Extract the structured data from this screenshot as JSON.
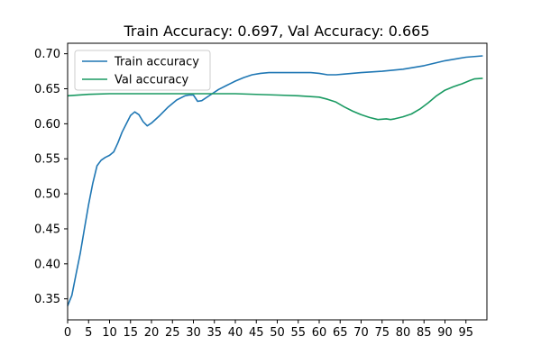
{
  "chart_data": {
    "type": "line",
    "title": "Train Accuracy: 0.697, Val Accuracy: 0.665",
    "xlabel": "",
    "ylabel": "",
    "xlim": [
      0,
      100
    ],
    "ylim": [
      0.32,
      0.715
    ],
    "grid": false,
    "legend_position": "top-left",
    "x_ticks": [
      0,
      5,
      10,
      15,
      20,
      25,
      30,
      35,
      40,
      45,
      50,
      55,
      60,
      65,
      70,
      75,
      80,
      85,
      90,
      95
    ],
    "y_ticks": [
      0.35,
      0.4,
      0.45,
      0.5,
      0.55,
      0.6,
      0.65,
      0.7
    ],
    "y_tick_labels": [
      "0.35",
      "0.40",
      "0.45",
      "0.50",
      "0.55",
      "0.60",
      "0.65",
      "0.70"
    ],
    "series": [
      {
        "name": "Train accuracy",
        "color": "#1f77b4",
        "x": [
          0,
          1,
          2,
          3,
          4,
          5,
          6,
          7,
          8,
          9,
          10,
          11,
          12,
          13,
          14,
          15,
          16,
          17,
          18,
          19,
          20,
          22,
          24,
          26,
          28,
          29,
          30,
          31,
          32,
          34,
          36,
          38,
          40,
          42,
          44,
          46,
          48,
          50,
          55,
          58,
          60,
          62,
          64,
          66,
          70,
          75,
          80,
          85,
          90,
          95,
          99
        ],
        "values": [
          0.34,
          0.355,
          0.385,
          0.415,
          0.45,
          0.485,
          0.515,
          0.54,
          0.548,
          0.552,
          0.555,
          0.56,
          0.573,
          0.588,
          0.6,
          0.612,
          0.617,
          0.613,
          0.603,
          0.597,
          0.601,
          0.612,
          0.624,
          0.634,
          0.64,
          0.641,
          0.641,
          0.632,
          0.633,
          0.641,
          0.649,
          0.655,
          0.661,
          0.666,
          0.67,
          0.672,
          0.673,
          0.673,
          0.673,
          0.673,
          0.672,
          0.67,
          0.67,
          0.671,
          0.673,
          0.675,
          0.678,
          0.683,
          0.69,
          0.695,
          0.697
        ]
      },
      {
        "name": "Val accuracy",
        "color": "#1a9a62",
        "x": [
          0,
          5,
          10,
          20,
          30,
          40,
          50,
          55,
          60,
          62,
          64,
          66,
          68,
          70,
          72,
          74,
          76,
          77,
          78,
          80,
          82,
          84,
          86,
          88,
          90,
          92,
          94,
          96,
          97,
          99
        ],
        "values": [
          0.64,
          0.642,
          0.643,
          0.643,
          0.643,
          0.643,
          0.641,
          0.64,
          0.638,
          0.635,
          0.631,
          0.624,
          0.618,
          0.613,
          0.609,
          0.606,
          0.607,
          0.606,
          0.607,
          0.61,
          0.614,
          0.621,
          0.63,
          0.64,
          0.648,
          0.653,
          0.657,
          0.662,
          0.664,
          0.665
        ]
      }
    ]
  }
}
